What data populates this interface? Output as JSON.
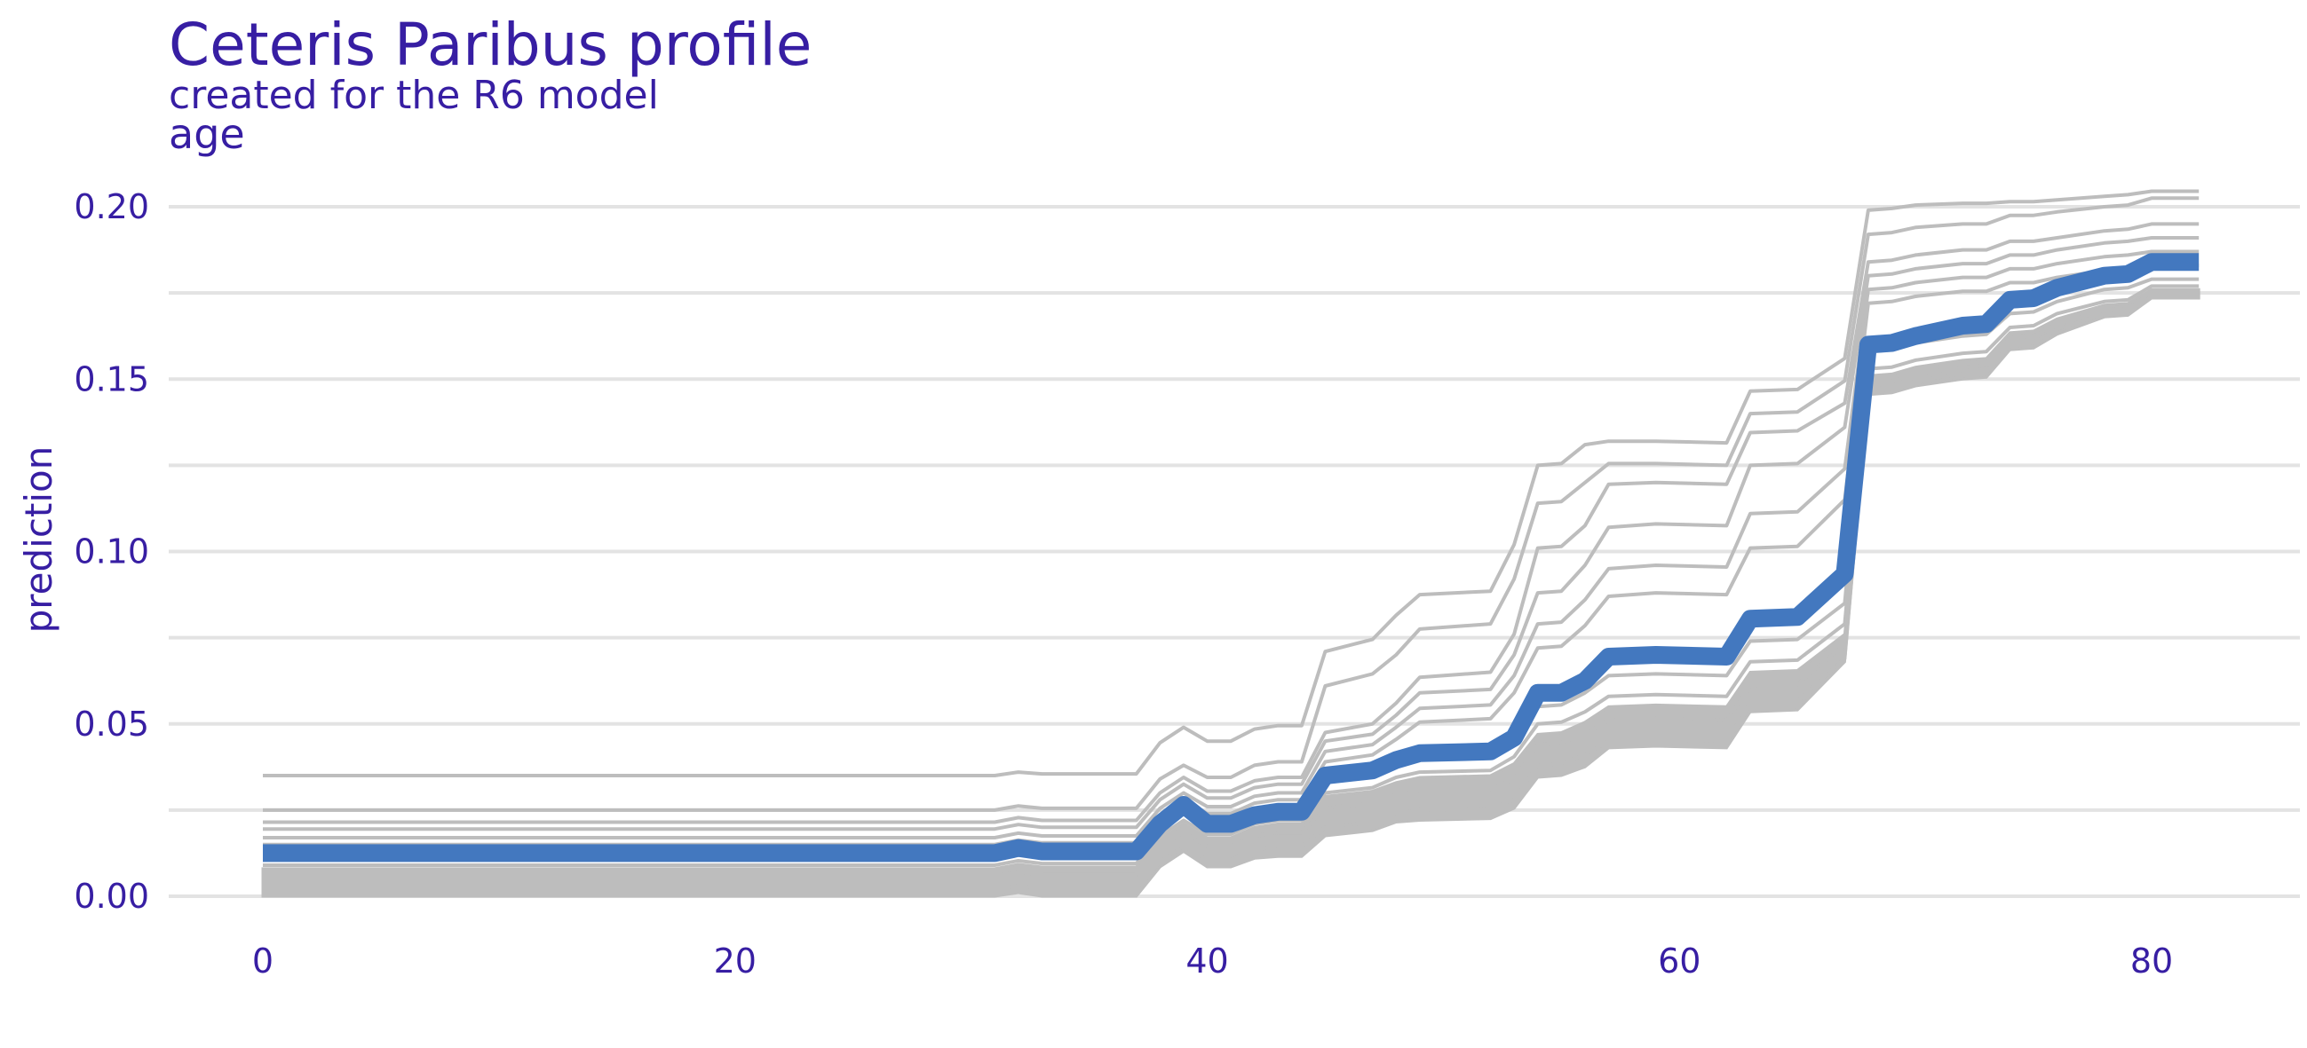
{
  "title": "Ceteris Paribus profile",
  "subtitle": "created for the R6 model",
  "panel_label": "age",
  "colors": {
    "text": "#371ea3",
    "grid": "#e3e3e3",
    "profile": "#4378bf",
    "background_profiles": "#bdbdbd"
  },
  "chart_data": {
    "type": "line",
    "title": "Ceteris Paribus profile",
    "subtitle": "created for the R6 model",
    "variable": "age",
    "xlabel": "",
    "ylabel": "prediction",
    "xlim": [
      -4,
      86
    ],
    "ylim": [
      -0.001,
      0.21
    ],
    "x_ticks": [
      0,
      20,
      40,
      60,
      80
    ],
    "y_ticks": [
      0.0,
      0.05,
      0.1,
      0.15,
      0.2
    ],
    "x_tick_labels": [
      "0",
      "20",
      "40",
      "60",
      "80"
    ],
    "y_tick_labels": [
      "0.00",
      "0.05",
      "0.10",
      "0.15",
      "0.20"
    ],
    "grid": "horizontal",
    "x": [
      0,
      31,
      32,
      33,
      37,
      38,
      39,
      40,
      41,
      42,
      43,
      44,
      45,
      47,
      48,
      49,
      52,
      53,
      54,
      55,
      56,
      57,
      59,
      62,
      63,
      65,
      67,
      68,
      69,
      70,
      72,
      73,
      74,
      75,
      76,
      78,
      79,
      80,
      82
    ],
    "main_profile": {
      "values": [
        0.0125,
        0.0125,
        0.014,
        0.013,
        0.013,
        0.021,
        0.0265,
        0.021,
        0.021,
        0.0235,
        0.0245,
        0.0245,
        0.035,
        0.0365,
        0.0395,
        0.0415,
        0.042,
        0.046,
        0.059,
        0.059,
        0.0625,
        0.0695,
        0.07,
        0.0695,
        0.0805,
        0.081,
        0.0935,
        0.16,
        0.1605,
        0.1625,
        0.1655,
        0.166,
        0.173,
        0.1735,
        0.1765,
        0.18,
        0.1805,
        0.184,
        0.184
      ]
    },
    "background_profiles": [
      {
        "values": [
          0.035,
          0.035,
          0.036,
          0.0355,
          0.0355,
          0.0445,
          0.049,
          0.045,
          0.045,
          0.0485,
          0.0495,
          0.0495,
          0.071,
          0.0745,
          0.0815,
          0.0875,
          0.0885,
          0.102,
          0.125,
          0.1255,
          0.131,
          0.132,
          0.132,
          0.1315,
          0.1465,
          0.147,
          0.156,
          0.199,
          0.1995,
          0.2005,
          0.201,
          0.201,
          0.2015,
          0.2015,
          0.202,
          0.203,
          0.2035,
          0.2045,
          0.2045
        ]
      },
      {
        "values": [
          0.025,
          0.025,
          0.0262,
          0.0255,
          0.0255,
          0.034,
          0.038,
          0.0345,
          0.0345,
          0.038,
          0.039,
          0.039,
          0.061,
          0.0645,
          0.07,
          0.0775,
          0.079,
          0.092,
          0.114,
          0.1145,
          0.12,
          0.1255,
          0.1255,
          0.125,
          0.14,
          0.1405,
          0.1495,
          0.192,
          0.1925,
          0.194,
          0.195,
          0.195,
          0.1975,
          0.1975,
          0.1985,
          0.2,
          0.2005,
          0.2025,
          0.2025
        ]
      },
      {
        "values": [
          0.0215,
          0.0215,
          0.0228,
          0.022,
          0.022,
          0.03,
          0.0345,
          0.0305,
          0.0305,
          0.0335,
          0.0345,
          0.0345,
          0.0475,
          0.05,
          0.056,
          0.0635,
          0.065,
          0.076,
          0.101,
          0.1015,
          0.1075,
          0.1195,
          0.12,
          0.1195,
          0.1345,
          0.135,
          0.143,
          0.184,
          0.1845,
          0.186,
          0.1875,
          0.1875,
          0.19,
          0.19,
          0.191,
          0.193,
          0.1935,
          0.195,
          0.195
        ]
      },
      {
        "values": [
          0.0195,
          0.0195,
          0.0208,
          0.02,
          0.02,
          0.028,
          0.0325,
          0.0285,
          0.0285,
          0.0315,
          0.0325,
          0.0325,
          0.045,
          0.047,
          0.0525,
          0.059,
          0.06,
          0.07,
          0.088,
          0.0885,
          0.096,
          0.107,
          0.108,
          0.1075,
          0.125,
          0.1255,
          0.136,
          0.18,
          0.1805,
          0.182,
          0.1835,
          0.1835,
          0.186,
          0.186,
          0.1875,
          0.1895,
          0.19,
          0.191,
          0.191
        ]
      },
      {
        "values": [
          0.017,
          0.017,
          0.0183,
          0.0175,
          0.0175,
          0.0255,
          0.03,
          0.026,
          0.026,
          0.029,
          0.03,
          0.03,
          0.042,
          0.044,
          0.049,
          0.0545,
          0.0555,
          0.064,
          0.079,
          0.0795,
          0.086,
          0.095,
          0.096,
          0.0955,
          0.111,
          0.1115,
          0.124,
          0.176,
          0.1765,
          0.178,
          0.1795,
          0.1795,
          0.182,
          0.182,
          0.1835,
          0.1855,
          0.186,
          0.187,
          0.187
        ]
      },
      {
        "values": [
          0.015,
          0.015,
          0.0163,
          0.0155,
          0.0155,
          0.0235,
          0.028,
          0.024,
          0.024,
          0.027,
          0.028,
          0.028,
          0.039,
          0.041,
          0.0455,
          0.0505,
          0.0515,
          0.059,
          0.072,
          0.0725,
          0.0785,
          0.087,
          0.088,
          0.0875,
          0.101,
          0.1015,
          0.115,
          0.172,
          0.1725,
          0.174,
          0.1755,
          0.1755,
          0.178,
          0.178,
          0.1795,
          0.1815,
          0.182,
          0.183,
          0.183
        ]
      },
      {
        "values": [
          0.011,
          0.011,
          0.0123,
          0.0115,
          0.0115,
          0.0195,
          0.024,
          0.02,
          0.02,
          0.023,
          0.024,
          0.024,
          0.033,
          0.0345,
          0.038,
          0.04,
          0.0405,
          0.045,
          0.055,
          0.0555,
          0.059,
          0.064,
          0.0645,
          0.064,
          0.074,
          0.0745,
          0.085,
          0.158,
          0.1585,
          0.1605,
          0.1625,
          0.163,
          0.169,
          0.1695,
          0.1725,
          0.176,
          0.1765,
          0.179,
          0.179
        ]
      },
      {
        "values": [
          0.009,
          0.009,
          0.0103,
          0.0095,
          0.0095,
          0.0175,
          0.022,
          0.018,
          0.018,
          0.021,
          0.022,
          0.022,
          0.03,
          0.0315,
          0.0345,
          0.036,
          0.0365,
          0.0405,
          0.05,
          0.0505,
          0.0535,
          0.058,
          0.0585,
          0.058,
          0.068,
          0.0685,
          0.079,
          0.153,
          0.1535,
          0.1555,
          0.1575,
          0.158,
          0.165,
          0.1655,
          0.169,
          0.1725,
          0.173,
          0.177,
          0.177
        ]
      },
      {
        "values": [
          0.006,
          0.006,
          0.007,
          0.0062,
          0.0062,
          0.014,
          0.0185,
          0.0145,
          0.0145,
          0.0175,
          0.0185,
          0.0185,
          0.0255,
          0.027,
          0.0295,
          0.0305,
          0.031,
          0.034,
          0.044,
          0.0445,
          0.047,
          0.051,
          0.0515,
          0.051,
          0.061,
          0.0615,
          0.073,
          0.149,
          0.1495,
          0.1515,
          0.1535,
          0.154,
          0.162,
          0.1625,
          0.166,
          0.17,
          0.1705,
          0.175,
          0.175
        ]
      },
      {
        "values": [
          0.002,
          0.002,
          0.003,
          0.0022,
          0.0022,
          0.01,
          0.0145,
          0.0105,
          0.0105,
          0.0135,
          0.0145,
          0.0145,
          0.02,
          0.0215,
          0.024,
          0.025,
          0.0255,
          0.028,
          0.038,
          0.0385,
          0.041,
          0.045,
          0.0455,
          0.045,
          0.056,
          0.0565,
          0.069,
          0.147,
          0.1475,
          0.1495,
          0.1515,
          0.152,
          0.16,
          0.1605,
          0.1645,
          0.169,
          0.1695,
          0.174,
          0.174
        ]
      }
    ],
    "background_band": {
      "lower": [
        0.0,
        0.0,
        0.001,
        0.0,
        0.0,
        0.0085,
        0.013,
        0.0085,
        0.0085,
        0.011,
        0.0115,
        0.0115,
        0.0175,
        0.019,
        0.0215,
        0.022,
        0.0225,
        0.0255,
        0.0345,
        0.035,
        0.0375,
        0.043,
        0.0435,
        0.043,
        0.0535,
        0.054,
        0.068,
        0.1455,
        0.146,
        0.148,
        0.15,
        0.1505,
        0.1585,
        0.159,
        0.163,
        0.168,
        0.1685,
        0.1735,
        0.1735
      ],
      "upper": [
        0.008,
        0.008,
        0.0093,
        0.0085,
        0.0085,
        0.0165,
        0.021,
        0.017,
        0.017,
        0.02,
        0.021,
        0.021,
        0.029,
        0.0305,
        0.033,
        0.0345,
        0.035,
        0.0385,
        0.047,
        0.0475,
        0.0505,
        0.055,
        0.0555,
        0.055,
        0.065,
        0.0655,
        0.076,
        0.151,
        0.1515,
        0.1535,
        0.1555,
        0.156,
        0.1635,
        0.164,
        0.1675,
        0.1715,
        0.172,
        0.176,
        0.176
      ]
    }
  }
}
